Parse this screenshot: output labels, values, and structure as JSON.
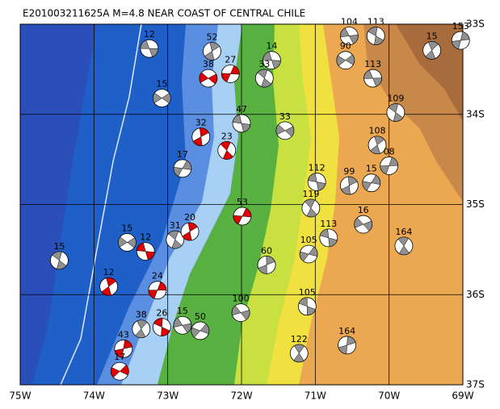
{
  "chart_data": {
    "type": "map",
    "title": "E201003211625A  M=4.8  NEAR COAST OF CENTRAL CHILE",
    "xlim": [
      -75,
      -69
    ],
    "ylim": [
      -37,
      -33
    ],
    "xticks": [
      {
        "value": -75,
        "label": "75W"
      },
      {
        "value": -74,
        "label": "74W"
      },
      {
        "value": -73,
        "label": "73W"
      },
      {
        "value": -72,
        "label": "72W"
      },
      {
        "value": -71,
        "label": "71W"
      },
      {
        "value": -70,
        "label": "70W"
      },
      {
        "value": -69,
        "label": "69W"
      }
    ],
    "yticks": [
      {
        "value": -33,
        "label": "33S"
      },
      {
        "value": -34,
        "label": "34S"
      },
      {
        "value": -35,
        "label": "35S"
      },
      {
        "value": -36,
        "label": "36S"
      },
      {
        "value": -37,
        "label": "37S"
      }
    ],
    "grid": true,
    "events": [
      {
        "lon": -73.25,
        "lat": -33.27,
        "label": "12",
        "color": "#909090"
      },
      {
        "lon": -74.47,
        "lat": -35.62,
        "label": "15",
        "color": "#909090"
      },
      {
        "lon": -73.8,
        "lat": -35.91,
        "label": "12",
        "color": "#e00000"
      },
      {
        "lon": -73.14,
        "lat": -35.95,
        "label": "24",
        "color": "#e00000"
      },
      {
        "lon": -73.55,
        "lat": -35.42,
        "label": "15",
        "color": "#909090"
      },
      {
        "lon": -73.3,
        "lat": -35.52,
        "label": "12",
        "color": "#e00000"
      },
      {
        "lon": -72.9,
        "lat": -35.39,
        "label": "31",
        "color": "#909090"
      },
      {
        "lon": -72.7,
        "lat": -35.3,
        "label": "20",
        "color": "#e00000"
      },
      {
        "lon": -71.99,
        "lat": -35.13,
        "label": "53",
        "color": "#e00000"
      },
      {
        "lon": -71.41,
        "lat": -34.18,
        "label": "33",
        "color": "#909090"
      },
      {
        "lon": -70.98,
        "lat": -34.75,
        "label": "112",
        "color": "#909090"
      },
      {
        "lon": -71.06,
        "lat": -35.04,
        "label": "119",
        "color": "#909090"
      },
      {
        "lon": -70.54,
        "lat": -34.79,
        "label": "99",
        "color": "#909090"
      },
      {
        "lon": -70.24,
        "lat": -34.76,
        "label": "15",
        "color": "#909090"
      },
      {
        "lon": -70.35,
        "lat": -35.22,
        "label": "16",
        "color": "#909090"
      },
      {
        "lon": -70.82,
        "lat": -35.37,
        "label": "113",
        "color": "#909090"
      },
      {
        "lon": -69.8,
        "lat": -35.46,
        "label": "164",
        "color": "#909090"
      },
      {
        "lon": -71.66,
        "lat": -35.67,
        "label": "60",
        "color": "#909090"
      },
      {
        "lon": -71.09,
        "lat": -35.55,
        "label": "105",
        "color": "#909090"
      },
      {
        "lon": -72.01,
        "lat": -36.2,
        "label": "100",
        "color": "#909090"
      },
      {
        "lon": -71.11,
        "lat": -36.13,
        "label": "105",
        "color": "#909090"
      },
      {
        "lon": -71.22,
        "lat": -36.65,
        "label": "122",
        "color": "#909090"
      },
      {
        "lon": -70.57,
        "lat": -36.56,
        "label": "164",
        "color": "#909090"
      },
      {
        "lon": -72.56,
        "lat": -36.4,
        "label": "50",
        "color": "#909090"
      },
      {
        "lon": -72.8,
        "lat": -36.34,
        "label": "15",
        "color": "#909090"
      },
      {
        "lon": -73.08,
        "lat": -36.36,
        "label": "26",
        "color": "#e00000"
      },
      {
        "lon": -73.36,
        "lat": -36.38,
        "label": "38",
        "color": "#909090"
      },
      {
        "lon": -73.6,
        "lat": -36.6,
        "label": "43",
        "color": "#e00000"
      },
      {
        "lon": -73.65,
        "lat": -36.85,
        "label": "17",
        "color": "#e00000"
      },
      {
        "lon": -70.54,
        "lat": -33.13,
        "label": "104",
        "color": "#909090"
      },
      {
        "lon": -70.18,
        "lat": -33.13,
        "label": "113",
        "color": "#909090"
      },
      {
        "lon": -69.42,
        "lat": -33.29,
        "label": "15",
        "color": "#909090"
      },
      {
        "lon": -69.03,
        "lat": -33.18,
        "label": "153",
        "color": "#909090"
      },
      {
        "lon": -70.59,
        "lat": -33.4,
        "label": "90",
        "color": "#909090"
      },
      {
        "lon": -70.22,
        "lat": -33.6,
        "label": "113",
        "color": "#909090"
      },
      {
        "lon": -69.91,
        "lat": -33.98,
        "label": "109",
        "color": "#909090"
      },
      {
        "lon": -70.16,
        "lat": -34.34,
        "label": "108",
        "color": "#909090"
      },
      {
        "lon": -70.0,
        "lat": -34.57,
        "label": "08",
        "color": "#909090"
      },
      {
        "lon": -73.08,
        "lat": -33.82,
        "label": "15",
        "color": "#909090"
      },
      {
        "lon": -71.59,
        "lat": -33.4,
        "label": "14",
        "color": "#909090"
      },
      {
        "lon": -71.69,
        "lat": -33.6,
        "label": "33",
        "color": "#909090"
      },
      {
        "lon": -72.4,
        "lat": -33.3,
        "label": "52",
        "color": "#909090"
      },
      {
        "lon": -72.15,
        "lat": -33.55,
        "label": "27",
        "color": "#e00000"
      },
      {
        "lon": -72.45,
        "lat": -33.6,
        "label": "38",
        "color": "#e00000"
      },
      {
        "lon": -72.0,
        "lat": -34.1,
        "label": "47",
        "color": "#909090"
      },
      {
        "lon": -72.2,
        "lat": -34.4,
        "label": "23",
        "color": "#e00000"
      },
      {
        "lon": -72.55,
        "lat": -34.25,
        "label": "32",
        "color": "#e00000"
      },
      {
        "lon": -72.8,
        "lat": -34.6,
        "label": "17",
        "color": "#909090"
      }
    ]
  }
}
